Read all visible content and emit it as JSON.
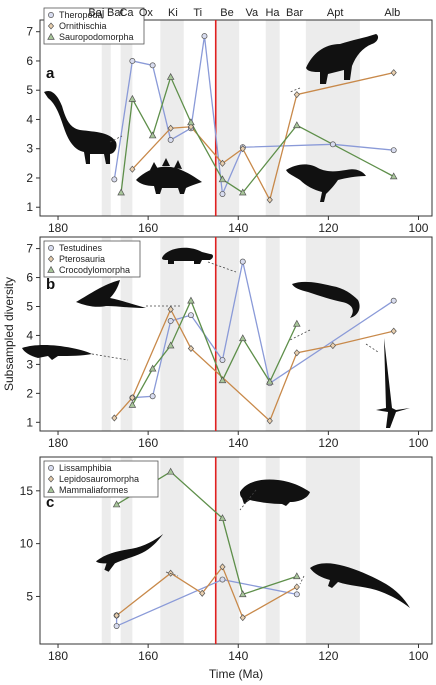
{
  "chart_data": [
    {
      "type": "line",
      "panel": "a",
      "ylabel": "",
      "ylim": [
        0.7,
        7.4
      ],
      "yticks": [
        1,
        2,
        3,
        4,
        5,
        6,
        7
      ],
      "xlim": [
        184,
        97
      ],
      "xticks": [
        180,
        160,
        140,
        120,
        100
      ],
      "stages": [
        "Baj",
        "Bat",
        "Ca",
        "Ox",
        "Ki",
        "Ti",
        "Be",
        "Va",
        "Ha",
        "Bar",
        "Apt",
        "Alb"
      ],
      "series": [
        {
          "name": "Theropoda",
          "marker": "circle",
          "color": "#8a9ad8",
          "x": [
            167.5,
            163.5,
            159,
            155,
            150.5,
            147.5,
            143.5,
            139,
            119,
            105.5
          ],
          "y": [
            1.95,
            6.0,
            5.85,
            3.3,
            3.7,
            6.85,
            1.45,
            3.05,
            3.15,
            2.95
          ]
        },
        {
          "name": "Ornithischia",
          "marker": "diamond",
          "color": "#c8894a",
          "x": [
            163.5,
            155,
            150.5,
            143.5,
            139,
            133,
            127,
            105.5
          ],
          "y": [
            2.3,
            3.7,
            3.75,
            2.5,
            3.0,
            1.25,
            4.85,
            5.6
          ]
        },
        {
          "name": "Sauropodomorpha",
          "marker": "triangle",
          "color": "#5e8f4a",
          "x": [
            166,
            163.5,
            159,
            155,
            150.5,
            143.5,
            139,
            127,
            105.5
          ],
          "y": [
            1.5,
            4.7,
            3.45,
            5.45,
            3.9,
            1.95,
            1.5,
            3.8,
            2.05
          ]
        }
      ]
    },
    {
      "type": "line",
      "panel": "b",
      "ylabel": "Subsampled diversity",
      "ylim": [
        0.7,
        7.4
      ],
      "yticks": [
        1,
        2,
        3,
        4,
        5,
        6,
        7
      ],
      "xlim": [
        184,
        97
      ],
      "xticks": [
        180,
        160,
        140,
        120,
        100
      ],
      "series": [
        {
          "name": "Testudines",
          "marker": "circle",
          "color": "#8a9ad8",
          "x": [
            163.5,
            159,
            155,
            150.5,
            143.5,
            139,
            133,
            105.5
          ],
          "y": [
            1.85,
            1.9,
            4.5,
            4.7,
            3.15,
            6.55,
            2.35,
            5.2
          ]
        },
        {
          "name": "Pterosauria",
          "marker": "diamond",
          "color": "#c8894a",
          "x": [
            167.5,
            163.5,
            155,
            150.5,
            133,
            127,
            119,
            105.5
          ],
          "y": [
            1.15,
            1.85,
            4.9,
            3.55,
            1.05,
            3.4,
            3.65,
            4.15
          ]
        },
        {
          "name": "Crocodylomorpha",
          "marker": "triangle",
          "color": "#5e8f4a",
          "x": [
            163.5,
            159,
            155,
            150.5,
            143.5,
            139,
            133,
            127
          ],
          "y": [
            1.6,
            2.85,
            3.65,
            5.2,
            2.45,
            3.9,
            2.4,
            4.4
          ]
        }
      ]
    },
    {
      "type": "line",
      "panel": "c",
      "xlabel": "Time (Ma)",
      "ylabel": "",
      "ylim": [
        0.5,
        18.2
      ],
      "yticks": [
        5,
        10,
        15
      ],
      "xlim": [
        184,
        97
      ],
      "xticks": [
        180,
        160,
        140,
        120,
        100
      ],
      "series": [
        {
          "name": "Lissamphibia",
          "marker": "circle",
          "color": "#8a9ad8",
          "x": [
            167,
            167,
            143.5,
            127
          ],
          "y": [
            3.2,
            2.2,
            6.6,
            5.2
          ]
        },
        {
          "name": "Lepidosauromorpha",
          "marker": "diamond",
          "color": "#c8894a",
          "x": [
            167,
            155,
            148,
            143.5,
            139,
            127
          ],
          "y": [
            3.2,
            7.2,
            5.3,
            7.8,
            3.0,
            5.9
          ]
        },
        {
          "name": "Mammaliaformes",
          "marker": "triangle",
          "color": "#5e8f4a",
          "x": [
            167,
            155,
            143.5,
            139,
            127
          ],
          "y": [
            13.7,
            16.8,
            12.4,
            5.2,
            6.9
          ]
        }
      ]
    }
  ],
  "geologic": {
    "boundary_ma": 145,
    "boundary_color": "#e02020",
    "shaded_bands_ma": [
      [
        170.3,
        168.3
      ],
      [
        166.1,
        163.5
      ],
      [
        157.3,
        152.1
      ],
      [
        145.0,
        139.8
      ],
      [
        133.9,
        130.8
      ],
      [
        125.0,
        113.0
      ]
    ]
  }
}
